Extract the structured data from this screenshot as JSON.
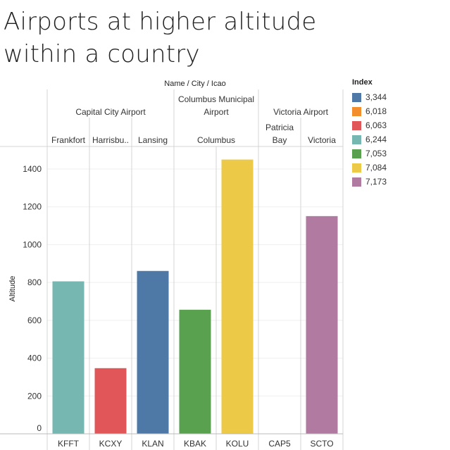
{
  "chart_data": {
    "type": "bar",
    "title": "Airports at higher altitude within a country",
    "title_lines": [
      "Airports at higher altitude",
      "within a country"
    ],
    "header_caption": "Name  /  City  /  Icao",
    "ylabel": "Altitude",
    "ylim": [
      0,
      1500
    ],
    "yticks": [
      0,
      200,
      400,
      600,
      800,
      1000,
      1200,
      1400
    ],
    "groups": [
      {
        "name_lines": [
          "Capital City Airport"
        ],
        "cities": [
          {
            "city_lines": [
              "Frankfort"
            ],
            "bars": [
              {
                "icao": "KFFT",
                "value": 806,
                "index": "6,244"
              }
            ]
          },
          {
            "city_lines": [
              "Harrisbu.."
            ],
            "bars": [
              {
                "icao": "KCXY",
                "value": 347,
                "index": "6,063"
              }
            ]
          },
          {
            "city_lines": [
              "Lansing"
            ],
            "bars": [
              {
                "icao": "KLAN",
                "value": 861,
                "index": "3,344"
              }
            ]
          }
        ]
      },
      {
        "name_lines": [
          "Columbus Municipal",
          "Airport"
        ],
        "cities": [
          {
            "city_lines": [
              "Columbus"
            ],
            "bars": [
              {
                "icao": "KBAK",
                "value": 656,
                "index": "7,053"
              },
              {
                "icao": "KOLU",
                "value": 1450,
                "index": "7,084"
              }
            ]
          }
        ]
      },
      {
        "name_lines": [
          "Victoria Airport"
        ],
        "cities": [
          {
            "city_lines": [
              "Patricia",
              "Bay"
            ],
            "bars": [
              {
                "icao": "CAP5",
                "value": 0,
                "index": "6,018"
              }
            ]
          },
          {
            "city_lines": [
              "Victoria"
            ],
            "bars": [
              {
                "icao": "SCTO",
                "value": 1151,
                "index": "7,173"
              }
            ]
          }
        ]
      }
    ],
    "legend": {
      "title": "Index",
      "placement": "right",
      "items": [
        {
          "label": "3,344",
          "color": "#4e79a7"
        },
        {
          "label": "6,018",
          "color": "#f28e2b"
        },
        {
          "label": "6,063",
          "color": "#e15759"
        },
        {
          "label": "6,244",
          "color": "#76b7b2"
        },
        {
          "label": "7,053",
          "color": "#59a14f"
        },
        {
          "label": "7,084",
          "color": "#edc948"
        },
        {
          "label": "7,173",
          "color": "#b07aa1"
        }
      ]
    }
  }
}
